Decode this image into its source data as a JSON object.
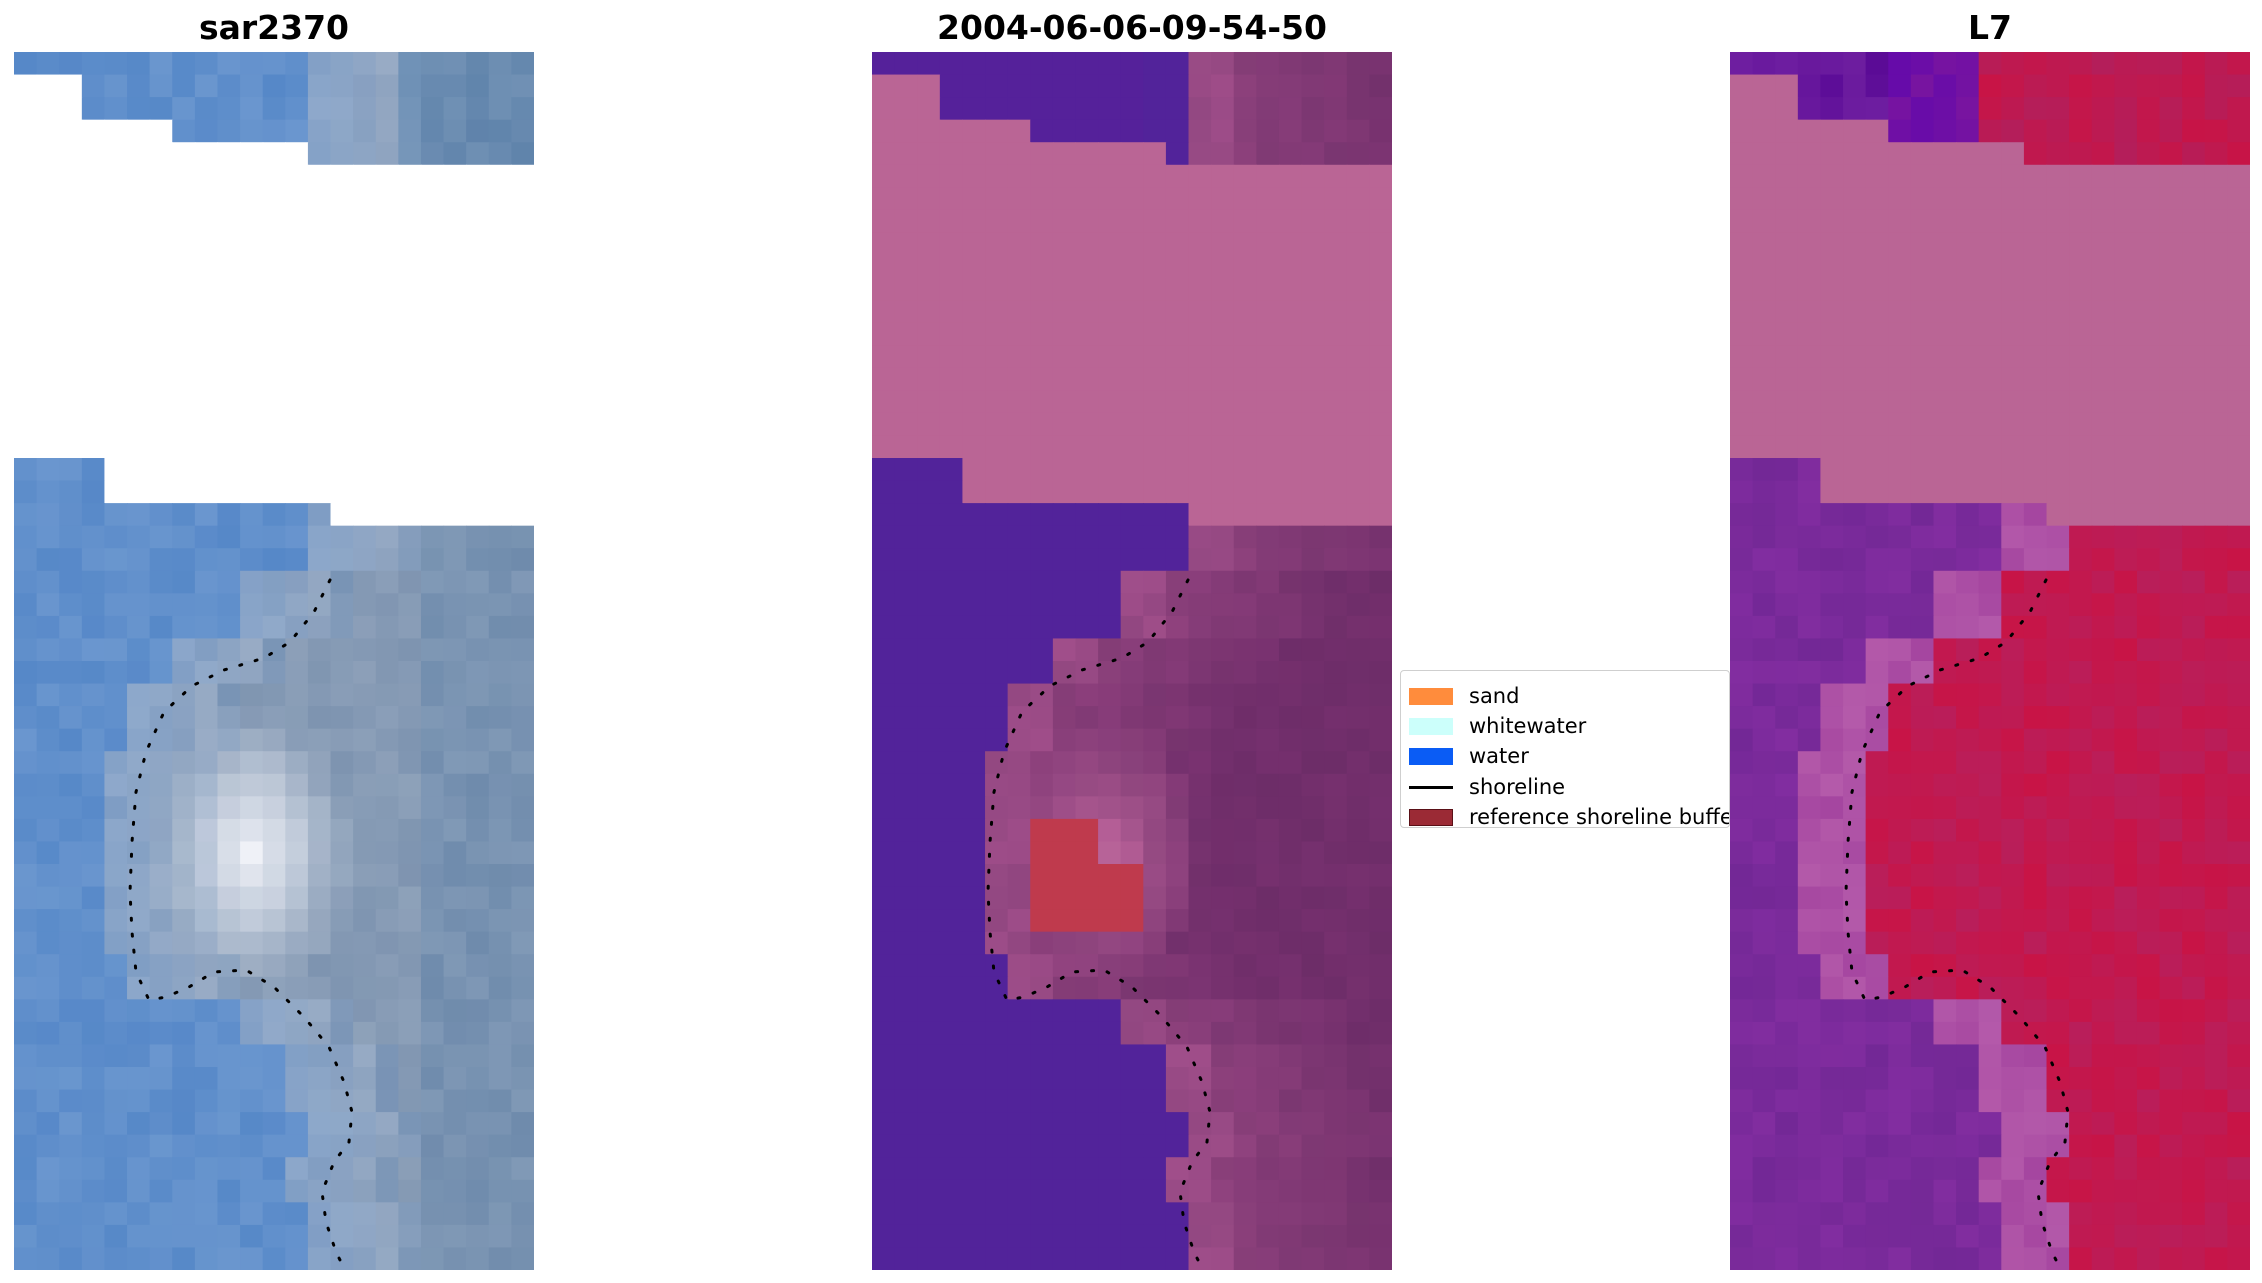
{
  "panels": [
    {
      "title": "sar2370",
      "palette": "rgb"
    },
    {
      "title": "2004-06-06-09-54-50",
      "palette": "classified"
    },
    {
      "title": "L7",
      "palette": "index"
    }
  ],
  "legend": {
    "items": [
      {
        "label": "sand",
        "type": "patch",
        "color": "#ff8c3c"
      },
      {
        "label": "whitewater",
        "type": "patch",
        "color": "#ccfffb"
      },
      {
        "label": "water",
        "type": "patch",
        "color": "#0a5cf5"
      },
      {
        "label": "shoreline",
        "type": "line",
        "color": "#000000"
      },
      {
        "label": "reference shoreline buffer",
        "type": "patch",
        "color": "#9b2a35",
        "edge": "#5a1017"
      }
    ]
  },
  "colors": {
    "buffer_pink": "#ba6595",
    "water_purple": "#52239a",
    "sand_red": "#bf3a4d",
    "background": "#ffffff"
  }
}
